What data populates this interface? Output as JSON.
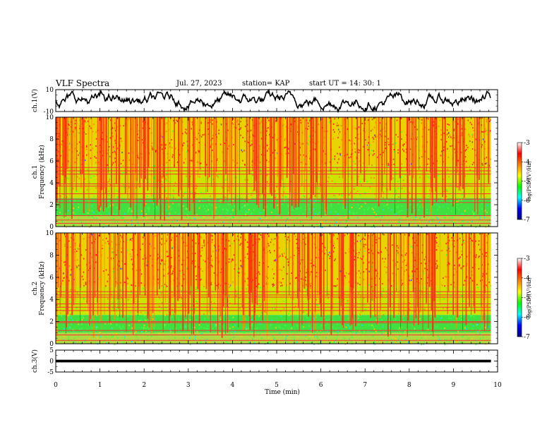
{
  "header": {
    "title": "VLF Spectra",
    "date": "Jul. 27, 2023",
    "station": "station= KAP",
    "start_time": "start UT = 14: 30: 1"
  },
  "chart_data": [
    {
      "type": "line",
      "panel": "ch1-waveform",
      "ylabel": "ch.1(V)",
      "ylim": [
        -10,
        10
      ],
      "y_ticks": [
        "10",
        "-10"
      ],
      "x_range": [
        0,
        10
      ],
      "data_extent_min": 9.85,
      "series": [
        {
          "values_range": [
            -10,
            10
          ],
          "color": "#000000"
        }
      ]
    },
    {
      "type": "heatmap",
      "panel": "ch1-spectrogram",
      "ylabel": "ch.1\nFrequency (kHz)",
      "ylim": [
        0,
        10
      ],
      "y_ticks": [
        "0",
        "2",
        "4",
        "6",
        "8",
        "10"
      ],
      "x_range": [
        0,
        10
      ],
      "colorbar": {
        "label": "log(PSD)(V²/Hz)",
        "range": [
          -7,
          -3
        ],
        "ticks": [
          "-3",
          "-4",
          "-5",
          "-6",
          "-7"
        ],
        "colors": [
          "#000080",
          "#0000ff",
          "#00ffff",
          "#00ff00",
          "#ffff00",
          "#ff8000",
          "#ff0000",
          "#ffffff"
        ]
      },
      "horizontal_lines_khz": [
        0.3,
        0.6,
        1.0,
        2.2,
        2.5,
        3.0,
        3.7,
        3.9,
        4.8,
        5.1,
        5.4
      ],
      "broadband_edge_khz": 5.6
    },
    {
      "type": "heatmap",
      "panel": "ch2-spectrogram",
      "ylabel": "ch.2\nFrequency (kHz)",
      "ylim": [
        0,
        10
      ],
      "y_ticks": [
        "0",
        "2",
        "4",
        "6",
        "8",
        "10"
      ],
      "x_range": [
        0,
        10
      ],
      "colorbar": {
        "label": "log(PSD)(V²/Hz)",
        "range": [
          -7,
          -3
        ],
        "ticks": [
          "-3",
          "-4",
          "-5",
          "-6",
          "-7"
        ],
        "colors": [
          "#000080",
          "#0000ff",
          "#00ffff",
          "#00ff00",
          "#ffff00",
          "#ff8000",
          "#ff0000",
          "#ffffff"
        ]
      },
      "horizontal_lines_khz": [
        0.3,
        0.8,
        1.2,
        1.9,
        2.0,
        3.0,
        3.3,
        3.6,
        4.2,
        4.4,
        4.7
      ],
      "broadband_edge_khz": 5.2
    },
    {
      "type": "line",
      "panel": "ch3-waveform",
      "ylabel": "ch.3(V)",
      "ylim": [
        -5,
        5
      ],
      "y_ticks": [
        "5",
        "0",
        "-5"
      ],
      "x_range": [
        0,
        10
      ],
      "data_extent_min": 9.85,
      "series": [
        {
          "values_range": [
            -0.6,
            0.6
          ],
          "color": "#000000"
        }
      ]
    }
  ],
  "x_axis": {
    "label": "Time (min)",
    "ticks": [
      "0",
      "1",
      "2",
      "3",
      "4",
      "5",
      "6",
      "7",
      "8",
      "9",
      "10"
    ]
  }
}
